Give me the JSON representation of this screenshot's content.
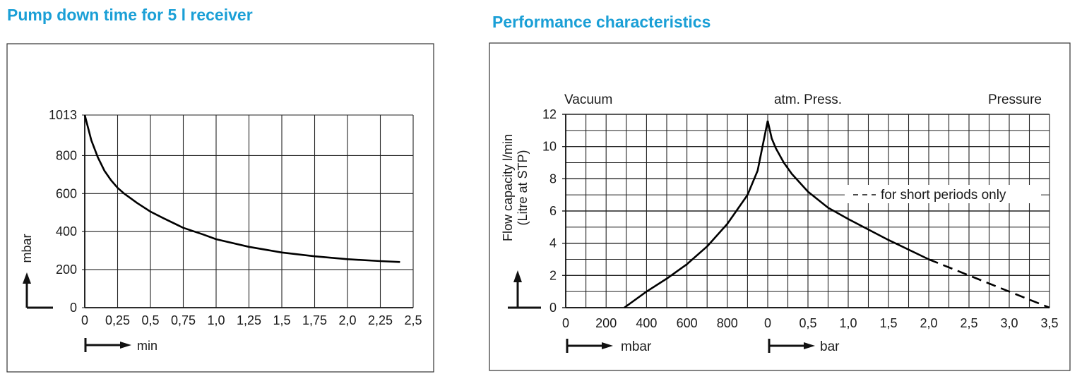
{
  "titles": {
    "left": "Pump down time for 5 l receiver",
    "right": "Performance characteristics"
  },
  "chart_data": [
    {
      "type": "line",
      "title": "Pump down time for 5 l receiver",
      "xlabel": "min",
      "ylabel": "mbar",
      "xlim": [
        0,
        2.5
      ],
      "ylim": [
        0,
        1013
      ],
      "x_ticks": [
        "0",
        "0,25",
        "0,5",
        "0,75",
        "1,0",
        "1,25",
        "1,5",
        "1,75",
        "2,0",
        "2,25",
        "2,5"
      ],
      "y_ticks": [
        "0",
        "200",
        "400",
        "600",
        "800",
        "1013"
      ],
      "grid": true,
      "series": [
        {
          "x": [
            0,
            0.05,
            0.1,
            0.15,
            0.2,
            0.25,
            0.3,
            0.4,
            0.5,
            0.6,
            0.75,
            0.9,
            1.0,
            1.25,
            1.5,
            1.75,
            2.0,
            2.25,
            2.4
          ],
          "y": [
            1013,
            880,
            790,
            720,
            670,
            630,
            600,
            550,
            505,
            470,
            420,
            385,
            360,
            320,
            290,
            270,
            255,
            245,
            240
          ]
        }
      ]
    },
    {
      "type": "line",
      "title": "Performance characteristics",
      "ylabel": "Flow capacity l/min (Litre at STP)",
      "ylabel_lines": [
        "Flow capacity l/min",
        "(Litre at STP)"
      ],
      "ylim": [
        0,
        12
      ],
      "y_ticks": [
        "0",
        "2",
        "4",
        "6",
        "8",
        "10",
        "12"
      ],
      "x_ticks": [
        "0",
        "200",
        "400",
        "600",
        "800",
        "0",
        "0,5",
        "1,0",
        "1,5",
        "2,0",
        "2,5",
        "3,0",
        "3,5"
      ],
      "x_units": [
        "mbar",
        "bar"
      ],
      "region_labels": [
        "Vacuum",
        "atm. Press.",
        "Pressure"
      ],
      "annotation": "for short periods only",
      "grid": true,
      "series": [
        {
          "segment": "vacuum",
          "x_unit": "mbar",
          "x": [
            290,
            400,
            500,
            600,
            700,
            800,
            900,
            950,
            1000
          ],
          "y": [
            0,
            1.0,
            1.8,
            2.7,
            3.8,
            5.2,
            7.0,
            8.5,
            11.6
          ]
        },
        {
          "segment": "pressure",
          "x_unit": "bar",
          "x": [
            0,
            0.05,
            0.1,
            0.2,
            0.3,
            0.5,
            0.75,
            1.0,
            1.5,
            2.0
          ],
          "y": [
            11.6,
            10.5,
            9.9,
            9.0,
            8.3,
            7.2,
            6.2,
            5.5,
            4.2,
            3.0
          ]
        },
        {
          "segment": "short periods",
          "x_unit": "bar",
          "dashed": true,
          "x": [
            2.0,
            2.5,
            3.0,
            3.5
          ],
          "y": [
            3.0,
            2.0,
            1.0,
            0
          ]
        }
      ]
    }
  ]
}
